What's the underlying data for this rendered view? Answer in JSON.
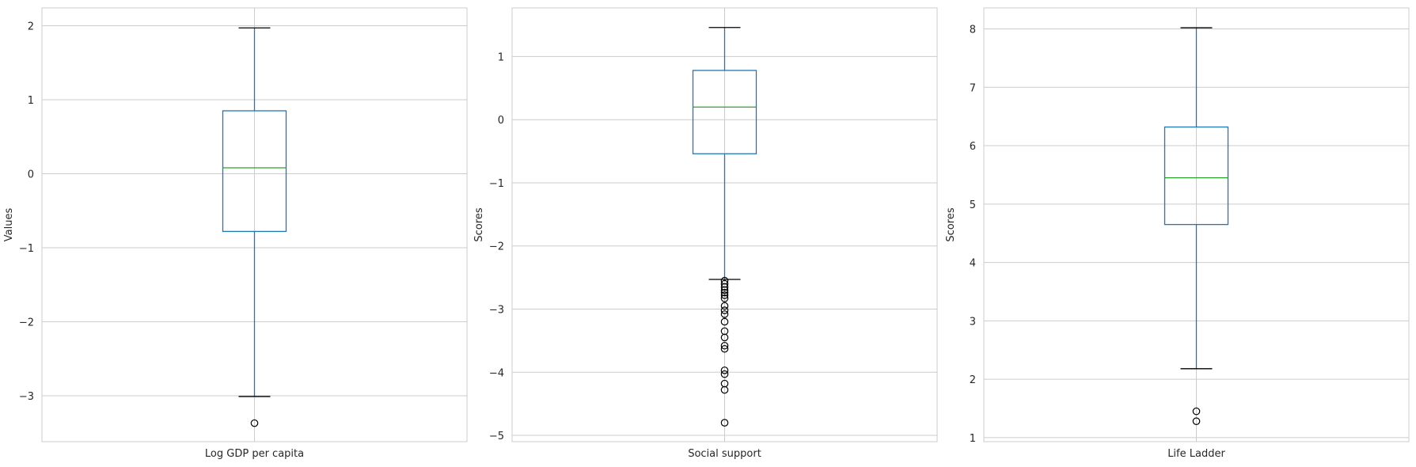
{
  "chart_data": [
    {
      "type": "box",
      "title": "",
      "categories": [
        "Log GDP per capita"
      ],
      "xlabel": "",
      "ylabel": "Values",
      "ylim": [
        -3.62,
        2.24
      ],
      "yticks": [
        -3,
        -2,
        -1,
        0,
        1,
        2
      ],
      "grid": true,
      "stats": {
        "whisker_low": -3.01,
        "q1": -0.78,
        "median": 0.08,
        "q3": 0.85,
        "whisker_high": 1.97
      },
      "outliers": [
        -3.37
      ],
      "colors": {
        "box": "#1f77b4",
        "median": "#2ca02c",
        "cap": "#000000",
        "grid": "#cccccc"
      }
    },
    {
      "type": "box",
      "title": "",
      "categories": [
        "Social support"
      ],
      "xlabel": "",
      "ylabel": "Scores",
      "ylim": [
        -5.1,
        1.77
      ],
      "yticks": [
        -5,
        -4,
        -3,
        -2,
        -1,
        0,
        1
      ],
      "grid": true,
      "stats": {
        "whisker_low": -2.53,
        "q1": -0.54,
        "median": 0.2,
        "q3": 0.78,
        "whisker_high": 1.46
      },
      "outliers": [
        -2.55,
        -2.6,
        -2.65,
        -2.7,
        -2.74,
        -2.78,
        -2.83,
        -2.95,
        -3.02,
        -3.08,
        -3.2,
        -3.35,
        -3.45,
        -3.58,
        -3.63,
        -3.97,
        -4.03,
        -4.18,
        -4.28,
        -4.8
      ],
      "colors": {
        "box": "#1f77b4",
        "median": "#2ca02c",
        "cap": "#000000",
        "grid": "#cccccc"
      }
    },
    {
      "type": "box",
      "title": "",
      "categories": [
        "Life Ladder"
      ],
      "xlabel": "",
      "ylabel": "Scores",
      "ylim": [
        0.93,
        8.36
      ],
      "yticks": [
        1,
        2,
        3,
        4,
        5,
        6,
        7,
        8
      ],
      "grid": true,
      "stats": {
        "whisker_low": 2.18,
        "q1": 4.65,
        "median": 5.45,
        "q3": 6.32,
        "whisker_high": 8.02
      },
      "outliers": [
        1.45,
        1.28
      ],
      "colors": {
        "box": "#1f77b4",
        "median": "#2ca02c",
        "cap": "#000000",
        "grid": "#cccccc"
      }
    }
  ]
}
